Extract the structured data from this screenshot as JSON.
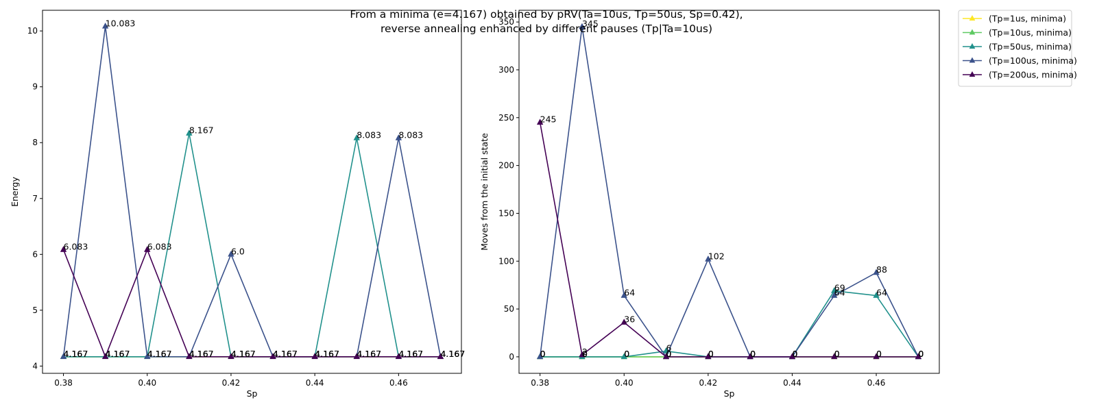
{
  "figure": {
    "title_line1": "From a minima (e=4.167) obtained by pRV(Ta=10us, Tp=50us, Sp=0.42),",
    "title_line2": "reverse annealing enhanced by different pauses (Tp|Ta=10us)"
  },
  "legend": {
    "placement": "outside upper right",
    "entries": [
      {
        "label": "(Tp=1us, minima)",
        "color": "#fde725"
      },
      {
        "label": "(Tp=10us, minima)",
        "color": "#5ec962"
      },
      {
        "label": "(Tp=50us, minima)",
        "color": "#21918c"
      },
      {
        "label": "(Tp=100us, minima)",
        "color": "#3b528b"
      },
      {
        "label": "(Tp=200us, minima)",
        "color": "#440154"
      }
    ]
  },
  "chart_data": [
    {
      "type": "line",
      "marker": "triangle",
      "xlabel": "Sp",
      "ylabel": "Energy",
      "xlim": [
        0.375,
        0.475
      ],
      "ylim": [
        3.87,
        10.37
      ],
      "xticks": [
        "0.38",
        "0.40",
        "0.42",
        "0.44",
        "0.46"
      ],
      "xtick_values": [
        0.38,
        0.4,
        0.42,
        0.44,
        0.46
      ],
      "yticks": [
        "4",
        "5",
        "6",
        "7",
        "8",
        "9",
        "10"
      ],
      "ytick_values": [
        4,
        5,
        6,
        7,
        8,
        9,
        10
      ],
      "x": [
        0.38,
        0.39,
        0.4,
        0.41,
        0.42,
        0.43,
        0.44,
        0.45,
        0.46,
        0.47
      ],
      "series": [
        {
          "name": "(Tp=1us, minima)",
          "color": "#fde725",
          "values": [
            4.167,
            4.167,
            4.167,
            4.167,
            4.167,
            4.167,
            4.167,
            4.167,
            4.167,
            4.167
          ]
        },
        {
          "name": "(Tp=10us, minima)",
          "color": "#5ec962",
          "values": [
            4.167,
            4.167,
            4.167,
            4.167,
            4.167,
            4.167,
            4.167,
            4.167,
            4.167,
            4.167
          ]
        },
        {
          "name": "(Tp=50us, minima)",
          "color": "#21918c",
          "values": [
            4.167,
            4.167,
            4.167,
            8.167,
            4.167,
            4.167,
            4.167,
            8.083,
            4.167,
            4.167
          ]
        },
        {
          "name": "(Tp=100us, minima)",
          "color": "#3b528b",
          "values": [
            4.167,
            10.083,
            4.167,
            4.167,
            6.0,
            4.167,
            4.167,
            4.167,
            8.083,
            4.167
          ]
        },
        {
          "name": "(Tp=200us, minima)",
          "color": "#440154",
          "values": [
            6.083,
            4.167,
            6.083,
            4.167,
            4.167,
            4.167,
            4.167,
            4.167,
            4.167,
            4.167
          ]
        }
      ],
      "labels": [
        [
          "4.167",
          "4.167",
          "4.167",
          "4.167",
          "4.167",
          "4.167",
          "4.167",
          "4.167",
          "4.167",
          "4.167"
        ],
        [
          "4.167",
          "4.167",
          "4.167",
          "4.167",
          "4.167",
          "4.167",
          "4.167",
          "4.167",
          "4.167",
          "4.167"
        ],
        [
          "4.167",
          "4.167",
          "4.167",
          "8.167",
          "4.167",
          "4.167",
          "4.167",
          "8.083",
          "4.167",
          "4.167"
        ],
        [
          "4.167",
          "10.083",
          "4.167",
          "4.167",
          "6.0",
          "4.167",
          "4.167",
          "4.167",
          "8.083",
          "4.167"
        ],
        [
          "6.083",
          "4.167",
          "6.083",
          "4.167",
          "4.167",
          "4.167",
          "4.167",
          "4.167",
          "4.167",
          "4.167"
        ]
      ],
      "grid": false
    },
    {
      "type": "line",
      "marker": "triangle",
      "xlabel": "Sp",
      "ylabel": "Moves from the initial state",
      "xlim": [
        0.375,
        0.475
      ],
      "ylim": [
        -17.25,
        362.25
      ],
      "xticks": [
        "0.38",
        "0.40",
        "0.42",
        "0.44",
        "0.46"
      ],
      "xtick_values": [
        0.38,
        0.4,
        0.42,
        0.44,
        0.46
      ],
      "yticks": [
        "0",
        "50",
        "100",
        "150",
        "200",
        "250",
        "300",
        "350"
      ],
      "ytick_values": [
        0,
        50,
        100,
        150,
        200,
        250,
        300,
        350
      ],
      "x": [
        0.38,
        0.39,
        0.4,
        0.41,
        0.42,
        0.43,
        0.44,
        0.45,
        0.46,
        0.47
      ],
      "series": [
        {
          "name": "(Tp=1us, minima)",
          "color": "#fde725",
          "values": [
            0,
            0,
            0,
            0,
            0,
            0,
            0,
            0,
            0,
            0
          ]
        },
        {
          "name": "(Tp=10us, minima)",
          "color": "#5ec962",
          "values": [
            0,
            0,
            0,
            0,
            0,
            0,
            0,
            0,
            0,
            0
          ]
        },
        {
          "name": "(Tp=50us, minima)",
          "color": "#21918c",
          "values": [
            0,
            0,
            0,
            6,
            0,
            0,
            0,
            69,
            64,
            0
          ]
        },
        {
          "name": "(Tp=100us, minima)",
          "color": "#3b528b",
          "values": [
            0,
            345,
            64,
            0,
            102,
            0,
            0,
            64,
            88,
            0
          ]
        },
        {
          "name": "(Tp=200us, minima)",
          "color": "#440154",
          "values": [
            245,
            2,
            36,
            0,
            0,
            0,
            0,
            0,
            0,
            0
          ]
        }
      ],
      "labels": [
        [
          "0",
          "0",
          "0",
          "0",
          "0",
          "0",
          "0",
          "0",
          "0",
          "0"
        ],
        [
          "0",
          "0",
          "0",
          "0",
          "0",
          "0",
          "0",
          "0",
          "0",
          "0"
        ],
        [
          "0",
          "0",
          "0",
          "6",
          "0",
          "0",
          "0",
          "69",
          "64",
          "0"
        ],
        [
          "0",
          "345",
          "64",
          "0",
          "102",
          "0",
          "0",
          "64",
          "88",
          "0"
        ],
        [
          "245",
          "2",
          "36",
          "0",
          "0",
          "0",
          "0",
          "0",
          "0",
          "0"
        ]
      ],
      "grid": false
    }
  ]
}
